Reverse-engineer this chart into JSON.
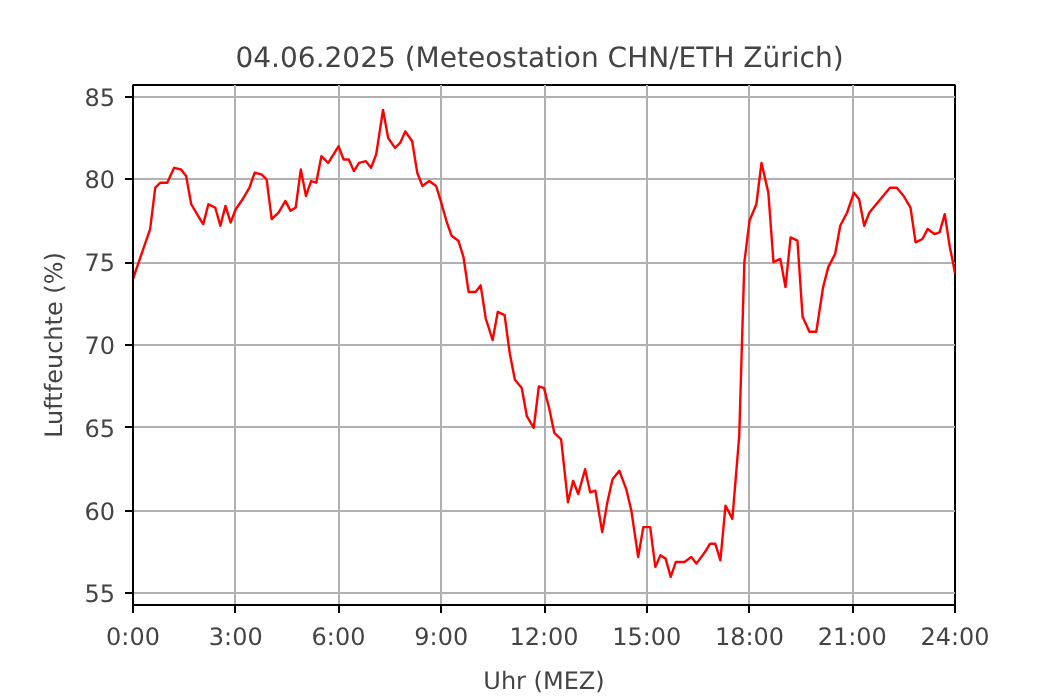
{
  "chart_data": {
    "type": "line",
    "title": "04.06.2025  (Meteostation CHN/ETH Zürich)",
    "xlabel": "Uhr (MEZ)",
    "ylabel": "Luftfeuchte (%)",
    "xlim": [
      0,
      24
    ],
    "ylim": [
      54.3,
      85.7
    ],
    "xticks": [
      {
        "value": 0,
        "label": "0:00"
      },
      {
        "value": 3,
        "label": "3:00"
      },
      {
        "value": 6,
        "label": "6:00"
      },
      {
        "value": 9,
        "label": "9:00"
      },
      {
        "value": 12,
        "label": "12:00"
      },
      {
        "value": 15,
        "label": "15:00"
      },
      {
        "value": 18,
        "label": "18:00"
      },
      {
        "value": 21,
        "label": "21:00"
      },
      {
        "value": 24,
        "label": "24:00"
      }
    ],
    "yticks": [
      55,
      60,
      65,
      70,
      75,
      80,
      85
    ],
    "grid": true,
    "line_style": "solid",
    "series": [
      {
        "color": "#ff0000",
        "x": [
          0,
          0.25,
          0.5,
          0.65,
          0.8,
          1.0,
          1.2,
          1.4,
          1.55,
          1.7,
          1.9,
          2.05,
          2.2,
          2.4,
          2.55,
          2.7,
          2.85,
          3.0,
          3.2,
          3.4,
          3.55,
          3.75,
          3.9,
          4.05,
          4.25,
          4.45,
          4.6,
          4.75,
          4.9,
          5.05,
          5.2,
          5.35,
          5.5,
          5.7,
          5.85,
          6.0,
          6.15,
          6.3,
          6.45,
          6.6,
          6.8,
          6.95,
          7.1,
          7.3,
          7.45,
          7.65,
          7.8,
          7.95,
          8.15,
          8.3,
          8.45,
          8.65,
          8.85,
          9.0,
          9.15,
          9.3,
          9.5,
          9.65,
          9.8,
          10.0,
          10.15,
          10.3,
          10.5,
          10.65,
          10.85,
          11.0,
          11.15,
          11.35,
          11.5,
          11.7,
          11.85,
          12.0,
          12.15,
          12.3,
          12.5,
          12.7,
          12.85,
          13.0,
          13.2,
          13.35,
          13.5,
          13.7,
          13.85,
          14.0,
          14.2,
          14.4,
          14.55,
          14.75,
          14.9,
          15.1,
          15.25,
          15.4,
          15.55,
          15.7,
          15.85,
          16.1,
          16.3,
          16.45,
          16.7,
          16.85,
          17.0,
          17.15,
          17.3,
          17.5,
          17.7,
          17.85,
          18.0,
          18.2,
          18.35,
          18.55,
          18.7,
          18.9,
          19.05,
          19.2,
          19.4,
          19.55,
          19.75,
          19.95,
          20.15,
          20.3,
          20.5,
          20.65,
          20.85,
          21.05,
          21.2,
          21.35,
          21.5,
          21.7,
          21.9,
          22.1,
          22.3,
          22.5,
          22.7,
          22.85,
          23.05,
          23.2,
          23.4,
          23.55,
          23.7,
          23.85,
          23.95,
          24.0
        ],
        "values": [
          74.0,
          75.5,
          77.0,
          79.5,
          79.8,
          79.8,
          80.7,
          80.6,
          80.2,
          78.5,
          77.8,
          77.3,
          78.5,
          78.3,
          77.2,
          78.4,
          77.4,
          78.2,
          78.8,
          79.5,
          80.4,
          80.3,
          80.0,
          77.6,
          78.0,
          78.7,
          78.1,
          78.3,
          80.6,
          79.0,
          79.9,
          79.8,
          81.4,
          81.0,
          81.5,
          82.0,
          81.2,
          81.2,
          80.5,
          81.0,
          81.1,
          80.7,
          81.5,
          84.2,
          82.5,
          81.9,
          82.2,
          82.9,
          82.3,
          80.4,
          79.6,
          79.9,
          79.6,
          78.6,
          77.5,
          76.6,
          76.3,
          75.3,
          73.2,
          73.2,
          73.6,
          71.6,
          70.3,
          72.0,
          71.8,
          69.5,
          67.9,
          67.4,
          65.7,
          65.0,
          67.5,
          67.4,
          66.2,
          64.7,
          64.3,
          60.5,
          61.8,
          61.0,
          62.5,
          61.1,
          61.2,
          58.7,
          60.5,
          61.9,
          62.4,
          61.3,
          60.0,
          57.2,
          59.0,
          59.0,
          56.6,
          57.3,
          57.1,
          56.0,
          56.9,
          56.9,
          57.2,
          56.8,
          57.5,
          58.0,
          58.0,
          57.0,
          60.3,
          59.5,
          64.5,
          75.0,
          77.5,
          78.5,
          81.0,
          79.2,
          75.0,
          75.2,
          73.5,
          76.5,
          76.3,
          71.7,
          70.8,
          70.8,
          73.5,
          74.7,
          75.5,
          77.2,
          78.0,
          79.2,
          78.8,
          77.2,
          78.0,
          78.5,
          79.0,
          79.5,
          79.5,
          79.0,
          78.3,
          76.2,
          76.4,
          77.0,
          76.7,
          76.8,
          77.9,
          75.9,
          74.9,
          74.3
        ]
      }
    ]
  }
}
